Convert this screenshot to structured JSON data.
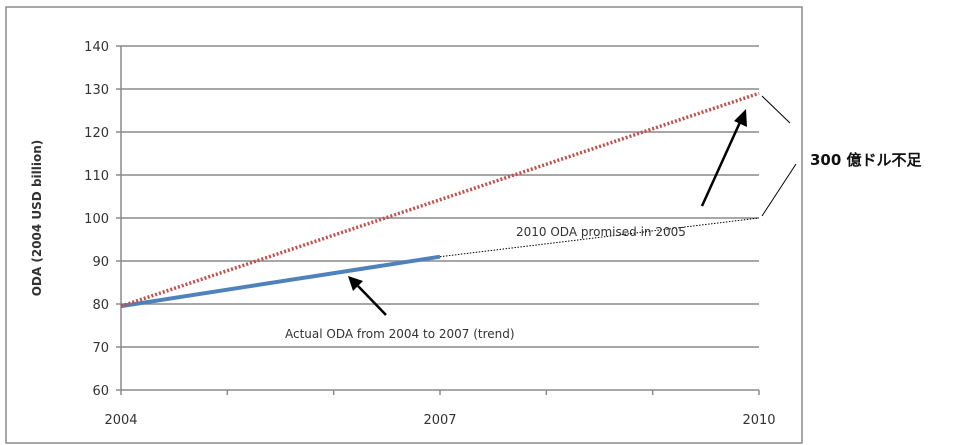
{
  "chart_data": {
    "type": "line",
    "title": "",
    "xlabel": "",
    "ylabel": "ODA (2004 USD billion)",
    "xlim": [
      2004,
      2010
    ],
    "ylim": [
      60,
      140
    ],
    "x_ticks": [
      "2004",
      "2007",
      "2010"
    ],
    "y_ticks": [
      "60",
      "70",
      "80",
      "90",
      "100",
      "110",
      "120",
      "130",
      "140"
    ],
    "grid": true,
    "series": [
      {
        "key": "promised",
        "color": "#c0504d",
        "style": "dotted",
        "x": [
          2004,
          2010
        ],
        "y": [
          79.5,
          129
        ]
      },
      {
        "key": "actual",
        "color": "#4f81bd",
        "style": "solid",
        "x": [
          2004,
          2007
        ],
        "y": [
          79.5,
          91
        ]
      },
      {
        "key": "trend",
        "color": "#000000",
        "style": "dotted-thin",
        "x": [
          2007,
          2010
        ],
        "y": [
          91,
          100
        ]
      }
    ],
    "annotations": {
      "promised": "2010 ODA promised in 2005",
      "actual": "Actual ODA from 2004 to 2007 (trend)",
      "gap": "300 億ドル不足"
    }
  }
}
